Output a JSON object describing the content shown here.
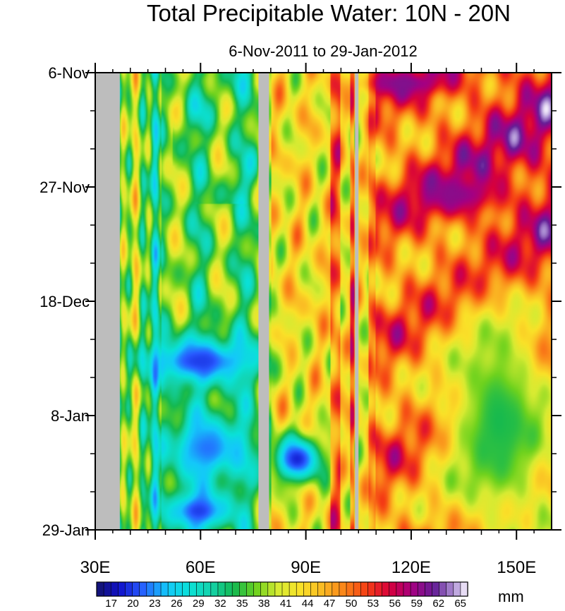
{
  "chart_data": {
    "type": "heatmap",
    "title": "Total Precipitable Water: 10N - 20N",
    "subtitle": "6-Nov-2011 to 29-Jan-2012",
    "x_axis": {
      "min_deg_e": 30,
      "max_deg_e": 160,
      "ticks": [
        30,
        60,
        90,
        120,
        150
      ],
      "tick_labels": [
        "30E",
        "60E",
        "90E",
        "120E",
        "150E"
      ]
    },
    "y_axis": {
      "orientation": "time increasing downward",
      "start_date": "2011-11-06",
      "end_date": "2012-01-29",
      "tick_dates": [
        "2011-11-06",
        "2011-11-27",
        "2011-12-18",
        "2012-01-08",
        "2012-01-29"
      ],
      "tick_labels": [
        "6-Nov",
        "27-Nov",
        "18-Dec",
        "8-Jan",
        "29-Jan"
      ],
      "minor_tick_interval_days": 7
    },
    "colorbar": {
      "units": "mm",
      "levels": [
        17,
        20,
        23,
        26,
        29,
        32,
        35,
        38,
        41,
        44,
        47,
        50,
        53,
        56,
        59,
        62,
        65
      ],
      "label_levels": [
        "17",
        "20",
        "23",
        "26",
        "29",
        "32",
        "35",
        "38",
        "41",
        "44",
        "47",
        "50",
        "53",
        "56",
        "59",
        "62",
        "65"
      ],
      "range": [
        15,
        66
      ]
    },
    "missing_color": "#bdbdbd",
    "missing_bands_deg_e": [
      [
        30,
        37
      ],
      [
        76.5,
        79.5
      ],
      [
        104,
        105
      ]
    ],
    "field_description_features": [
      {
        "lon": [
          45,
          75
        ],
        "dates": [
          "2011-12-25",
          "2012-01-02"
        ],
        "value_mm": 20
      },
      {
        "lon": [
          51,
          73
        ],
        "dates": [
          "2012-01-08",
          "2012-01-20"
        ],
        "value_mm": 22
      },
      {
        "lon": [
          51,
          68
        ],
        "dates": [
          "2012-01-22",
          "2012-01-29"
        ],
        "value_mm": 20
      },
      {
        "lon": [
          81,
          94
        ],
        "dates": [
          "2012-01-12",
          "2012-01-20"
        ],
        "value_mm": 19
      },
      {
        "lon": [
          108,
          128
        ],
        "dates": [
          "2011-11-06",
          "2011-11-10"
        ],
        "value_mm": 60
      },
      {
        "lon": [
          122,
          145
        ],
        "dates": [
          "2011-11-25",
          "2011-12-02"
        ],
        "value_mm": 60
      },
      {
        "lon": [
          130,
          160
        ],
        "dates": [
          "2011-12-20",
          "2012-01-29"
        ],
        "value_mm": 34
      }
    ]
  },
  "colors": {
    "background": "#ffffff",
    "axis": "#000000",
    "missing": "#bdbdbd"
  }
}
